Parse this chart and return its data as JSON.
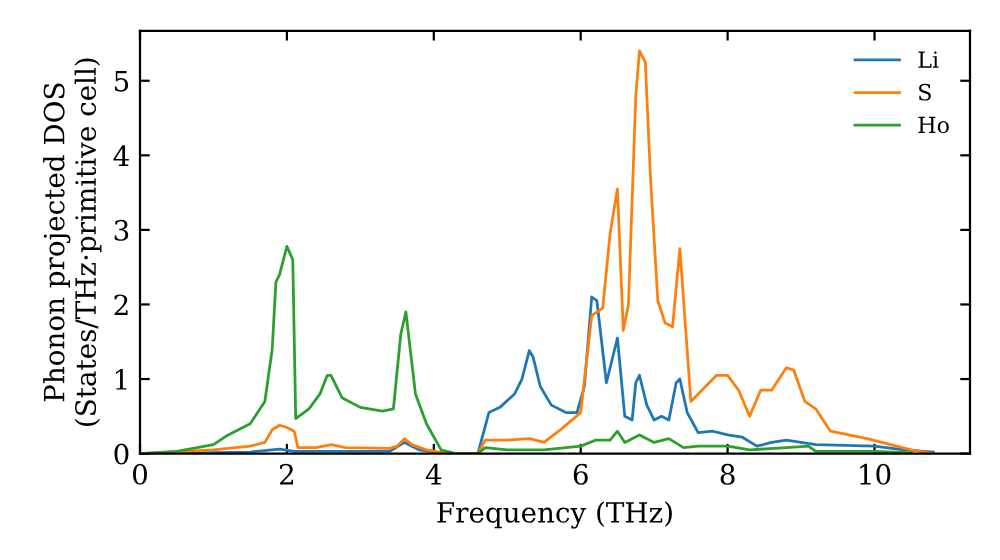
{
  "chart_data": {
    "type": "line",
    "xlabel": "Frequency (THz)",
    "ylabel": "Phonon projected DOS\n(States/THz·primitive cell)",
    "xlim": [
      0,
      11.3
    ],
    "ylim": [
      0,
      5.67
    ],
    "xticks": [
      0,
      2,
      4,
      6,
      8,
      10
    ],
    "yticks": [
      0,
      1,
      2,
      3,
      4,
      5
    ],
    "legend": "top right",
    "grid": false,
    "marker": "none",
    "line_style": "solid",
    "series": [
      {
        "name": "Li",
        "color": "#1f77b4",
        "x": [
          0,
          1.5,
          1.9,
          2.1,
          3.4,
          3.6,
          3.8,
          4.2,
          4.6,
          4.75,
          4.9,
          5.1,
          5.2,
          5.3,
          5.35,
          5.45,
          5.6,
          5.8,
          5.95,
          6.05,
          6.15,
          6.22,
          6.35,
          6.5,
          6.6,
          6.7,
          6.75,
          6.8,
          6.9,
          7.0,
          7.1,
          7.2,
          7.3,
          7.35,
          7.45,
          7.6,
          7.8,
          8.0,
          8.2,
          8.4,
          8.6,
          8.8,
          9.0,
          9.2,
          10.0,
          10.4,
          10.8
        ],
        "values": [
          0,
          0.02,
          0.06,
          0.03,
          0.03,
          0.15,
          0.05,
          0,
          0,
          0.55,
          0.62,
          0.8,
          1.0,
          1.38,
          1.3,
          0.9,
          0.65,
          0.55,
          0.55,
          0.9,
          2.1,
          2.05,
          0.95,
          1.55,
          0.5,
          0.45,
          0.95,
          1.05,
          0.65,
          0.45,
          0.5,
          0.45,
          0.95,
          1.0,
          0.55,
          0.28,
          0.3,
          0.25,
          0.22,
          0.1,
          0.15,
          0.18,
          0.15,
          0.12,
          0.1,
          0.05,
          0.02
        ]
      },
      {
        "name": "S",
        "color": "#ff7f0e",
        "x": [
          0,
          1.0,
          1.5,
          1.7,
          1.8,
          1.9,
          2.0,
          2.1,
          2.15,
          2.4,
          2.6,
          2.8,
          3.4,
          3.5,
          3.6,
          3.7,
          3.9,
          4.2,
          4.6,
          4.7,
          5.0,
          5.3,
          5.5,
          5.7,
          6.0,
          6.15,
          6.3,
          6.4,
          6.5,
          6.58,
          6.65,
          6.75,
          6.8,
          6.88,
          6.95,
          7.05,
          7.15,
          7.25,
          7.35,
          7.5,
          7.6,
          7.85,
          8.0,
          8.15,
          8.3,
          8.45,
          8.6,
          8.8,
          8.9,
          9.05,
          9.2,
          9.4,
          9.9,
          10.5,
          10.8
        ],
        "values": [
          0,
          0.05,
          0.1,
          0.15,
          0.32,
          0.38,
          0.35,
          0.3,
          0.08,
          0.08,
          0.12,
          0.08,
          0.07,
          0.1,
          0.2,
          0.12,
          0.05,
          0,
          0,
          0.18,
          0.18,
          0.2,
          0.15,
          0.3,
          0.55,
          1.85,
          1.95,
          2.95,
          3.55,
          1.65,
          2.0,
          4.8,
          5.4,
          5.25,
          3.7,
          2.05,
          1.75,
          1.7,
          2.75,
          0.7,
          0.8,
          1.05,
          1.05,
          0.85,
          0.5,
          0.85,
          0.85,
          1.15,
          1.12,
          0.7,
          0.6,
          0.3,
          0.2,
          0.05,
          0
        ]
      },
      {
        "name": "Ho",
        "color": "#2ca02c",
        "x": [
          0,
          0.5,
          1.0,
          1.2,
          1.5,
          1.7,
          1.8,
          1.85,
          1.9,
          2.0,
          2.08,
          2.12,
          2.3,
          2.45,
          2.55,
          2.6,
          2.75,
          3.0,
          3.3,
          3.45,
          3.55,
          3.62,
          3.75,
          3.9,
          4.1,
          4.3,
          4.6,
          4.7,
          5.0,
          5.5,
          6.0,
          6.2,
          6.4,
          6.5,
          6.6,
          6.8,
          7.0,
          7.2,
          7.4,
          7.6,
          8.0,
          8.3,
          8.8,
          9.1,
          9.2,
          10.0,
          10.5
        ],
        "values": [
          0,
          0.03,
          0.12,
          0.25,
          0.4,
          0.7,
          1.4,
          2.3,
          2.4,
          2.78,
          2.6,
          0.47,
          0.6,
          0.8,
          1.05,
          1.05,
          0.75,
          0.62,
          0.57,
          0.6,
          1.6,
          1.9,
          0.8,
          0.4,
          0.05,
          0,
          0,
          0.08,
          0.05,
          0.05,
          0.1,
          0.18,
          0.18,
          0.3,
          0.15,
          0.25,
          0.15,
          0.2,
          0.08,
          0.1,
          0.1,
          0.05,
          0.08,
          0.1,
          0.03,
          0.03,
          0.01
        ]
      }
    ]
  }
}
